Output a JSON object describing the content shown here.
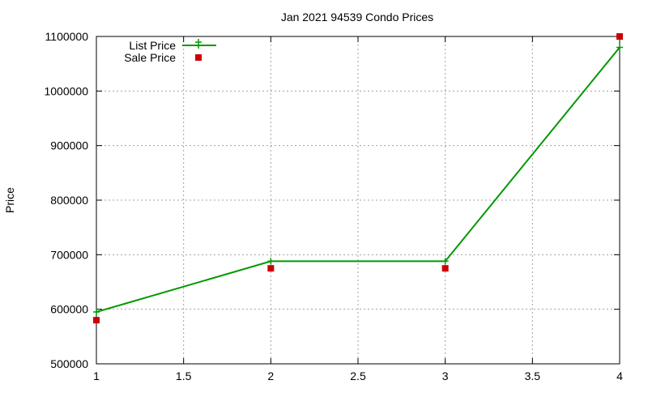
{
  "chart_data": {
    "type": "line",
    "title": "Jan 2021 94539 Condo Prices",
    "xlabel": "",
    "ylabel": "Price",
    "xlim": [
      1,
      4
    ],
    "ylim": [
      500000,
      1100000
    ],
    "x_ticks": [
      1,
      1.5,
      2,
      2.5,
      3,
      3.5,
      4
    ],
    "x_tick_labels": [
      "1",
      "1.5",
      "2",
      "2.5",
      "3",
      "3.5",
      "4"
    ],
    "y_ticks": [
      500000,
      600000,
      700000,
      800000,
      900000,
      1000000,
      1100000
    ],
    "y_tick_labels": [
      "500000",
      "600000",
      "700000",
      "800000",
      "900000",
      "1000000",
      "1100000"
    ],
    "grid": true,
    "legend_position": "top-left",
    "series": [
      {
        "name": "List Price",
        "style": "line+cross",
        "color": "#009900",
        "x": [
          1,
          2,
          3,
          4
        ],
        "y": [
          595000,
          688000,
          688000,
          1080000
        ]
      },
      {
        "name": "Sale Price",
        "style": "square-markers",
        "color": "#cc0000",
        "x": [
          1,
          2,
          3,
          4
        ],
        "y": [
          580000,
          675000,
          675000,
          1100000
        ]
      }
    ]
  }
}
